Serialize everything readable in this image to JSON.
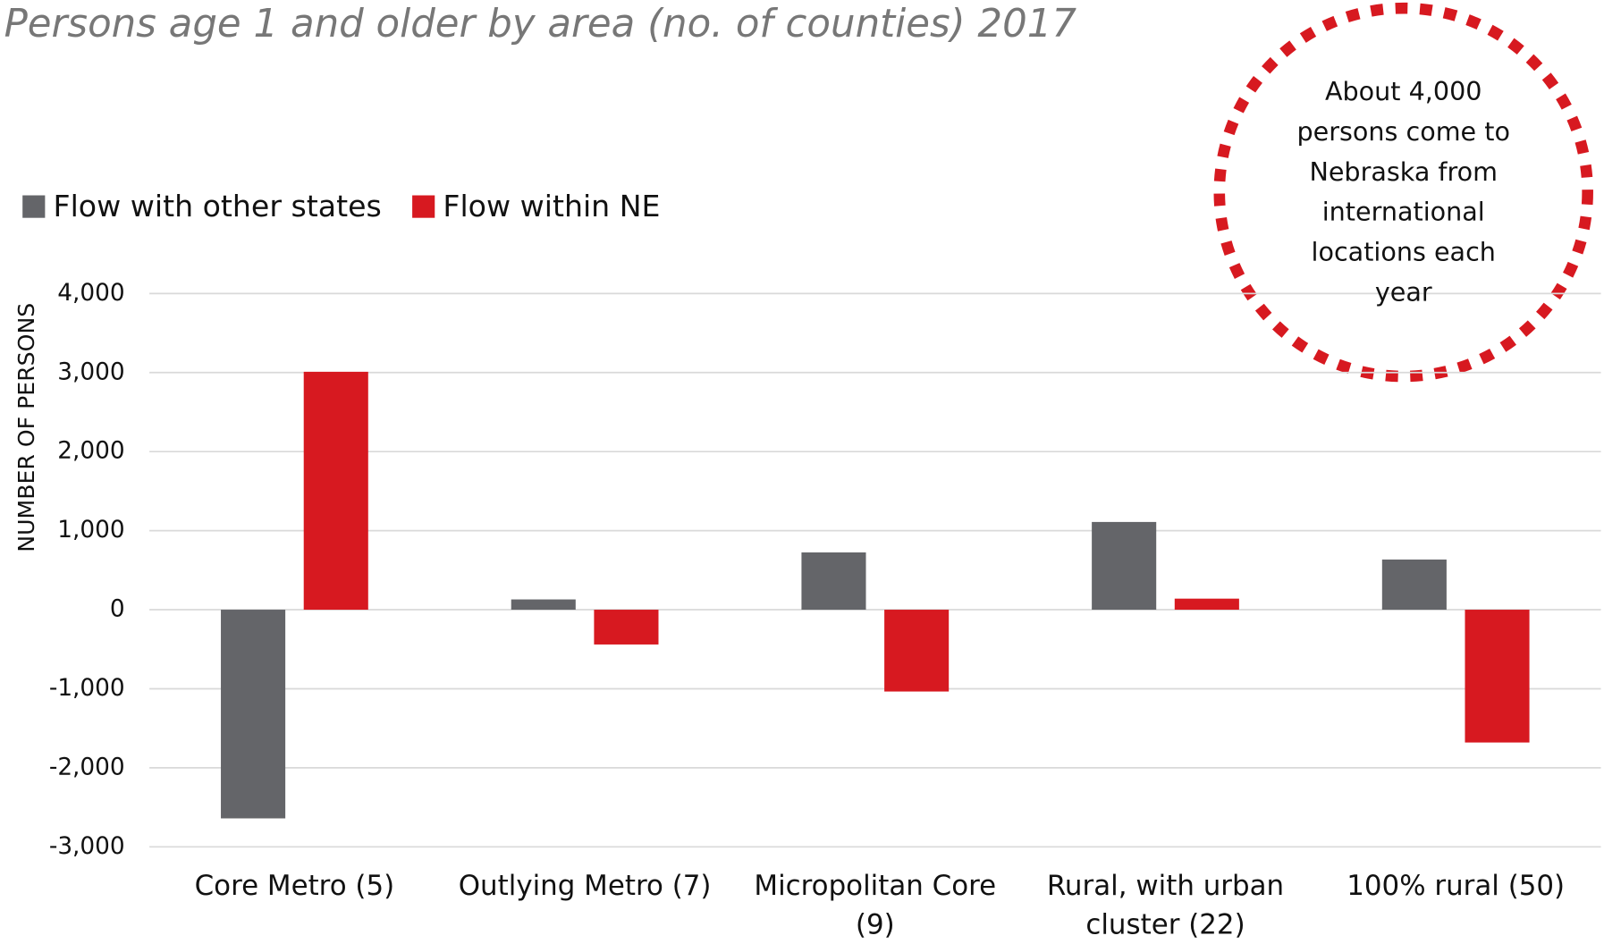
{
  "chart_data": {
    "type": "bar",
    "title": "Persons age 1 and older by area (no. of counties) 2017",
    "y_axis_label": "NUMBER OF PERSONS",
    "categories": [
      "Core Metro (5)",
      "Outlying Metro (7)",
      "Micropolitan Core (9)",
      "Rural, with urban cluster (22)",
      "100% rural (50)"
    ],
    "series": [
      {
        "name": "Flow with other states",
        "color": "#646569",
        "values": [
          -2640,
          130,
          725,
          1110,
          635
        ]
      },
      {
        "name": "Flow within NE",
        "color": "#d71920",
        "values": [
          3010,
          -440,
          -1035,
          140,
          -1680
        ]
      }
    ],
    "ylim": [
      -3000,
      4000
    ],
    "yticks": [
      {
        "value": -3000,
        "label": "-3,000"
      },
      {
        "value": -2000,
        "label": "-2,000"
      },
      {
        "value": -1000,
        "label": "-1,000"
      },
      0,
      {
        "value": 1000,
        "label": "1,000"
      },
      {
        "value": 2000,
        "label": "2,000"
      },
      {
        "value": 3000,
        "label": "3,000"
      },
      {
        "value": 4000,
        "label": "4,000"
      }
    ],
    "grid": true,
    "legend": "top-left",
    "annotation": [
      "About 4,000",
      "persons come to",
      "Nebraska from",
      "international",
      "locations each",
      "year"
    ]
  }
}
